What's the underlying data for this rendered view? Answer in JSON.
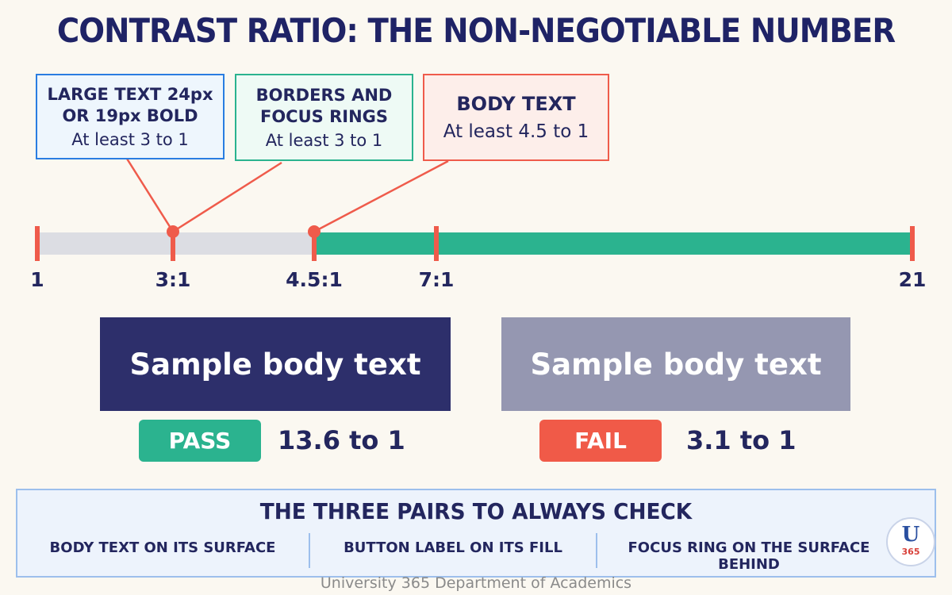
{
  "title": "CONTRAST RATIO: THE NON-NEGOTIABLE NUMBER",
  "callouts": [
    {
      "heading": [
        "LARGE TEXT 24px",
        "OR 19px BOLD"
      ],
      "detail": "At least 3 to 1"
    },
    {
      "heading": [
        "BORDERS AND",
        "FOCUS RINGS"
      ],
      "detail": "At least 3 to 1"
    },
    {
      "heading": [
        "BODY TEXT"
      ],
      "detail": "At least 4.5 to 1"
    }
  ],
  "scale": {
    "labels": [
      "1",
      "3:1",
      "4.5:1",
      "7:1",
      "21"
    ]
  },
  "samples": [
    {
      "text": "Sample body text",
      "status": "PASS",
      "ratio": "13.6 to 1"
    },
    {
      "text": "Sample body text",
      "status": "FAIL",
      "ratio": "3.1 to 1"
    }
  ],
  "checklist": {
    "title": "THE THREE PAIRS TO ALWAYS CHECK",
    "items": [
      "BODY TEXT ON ITS SURFACE",
      "BUTTON LABEL ON ITS FILL",
      "FOCUS RING ON THE SURFACE BEHIND"
    ]
  },
  "logo": {
    "letter": "U",
    "number": "365"
  },
  "footer": "University 365 Department of Academics"
}
